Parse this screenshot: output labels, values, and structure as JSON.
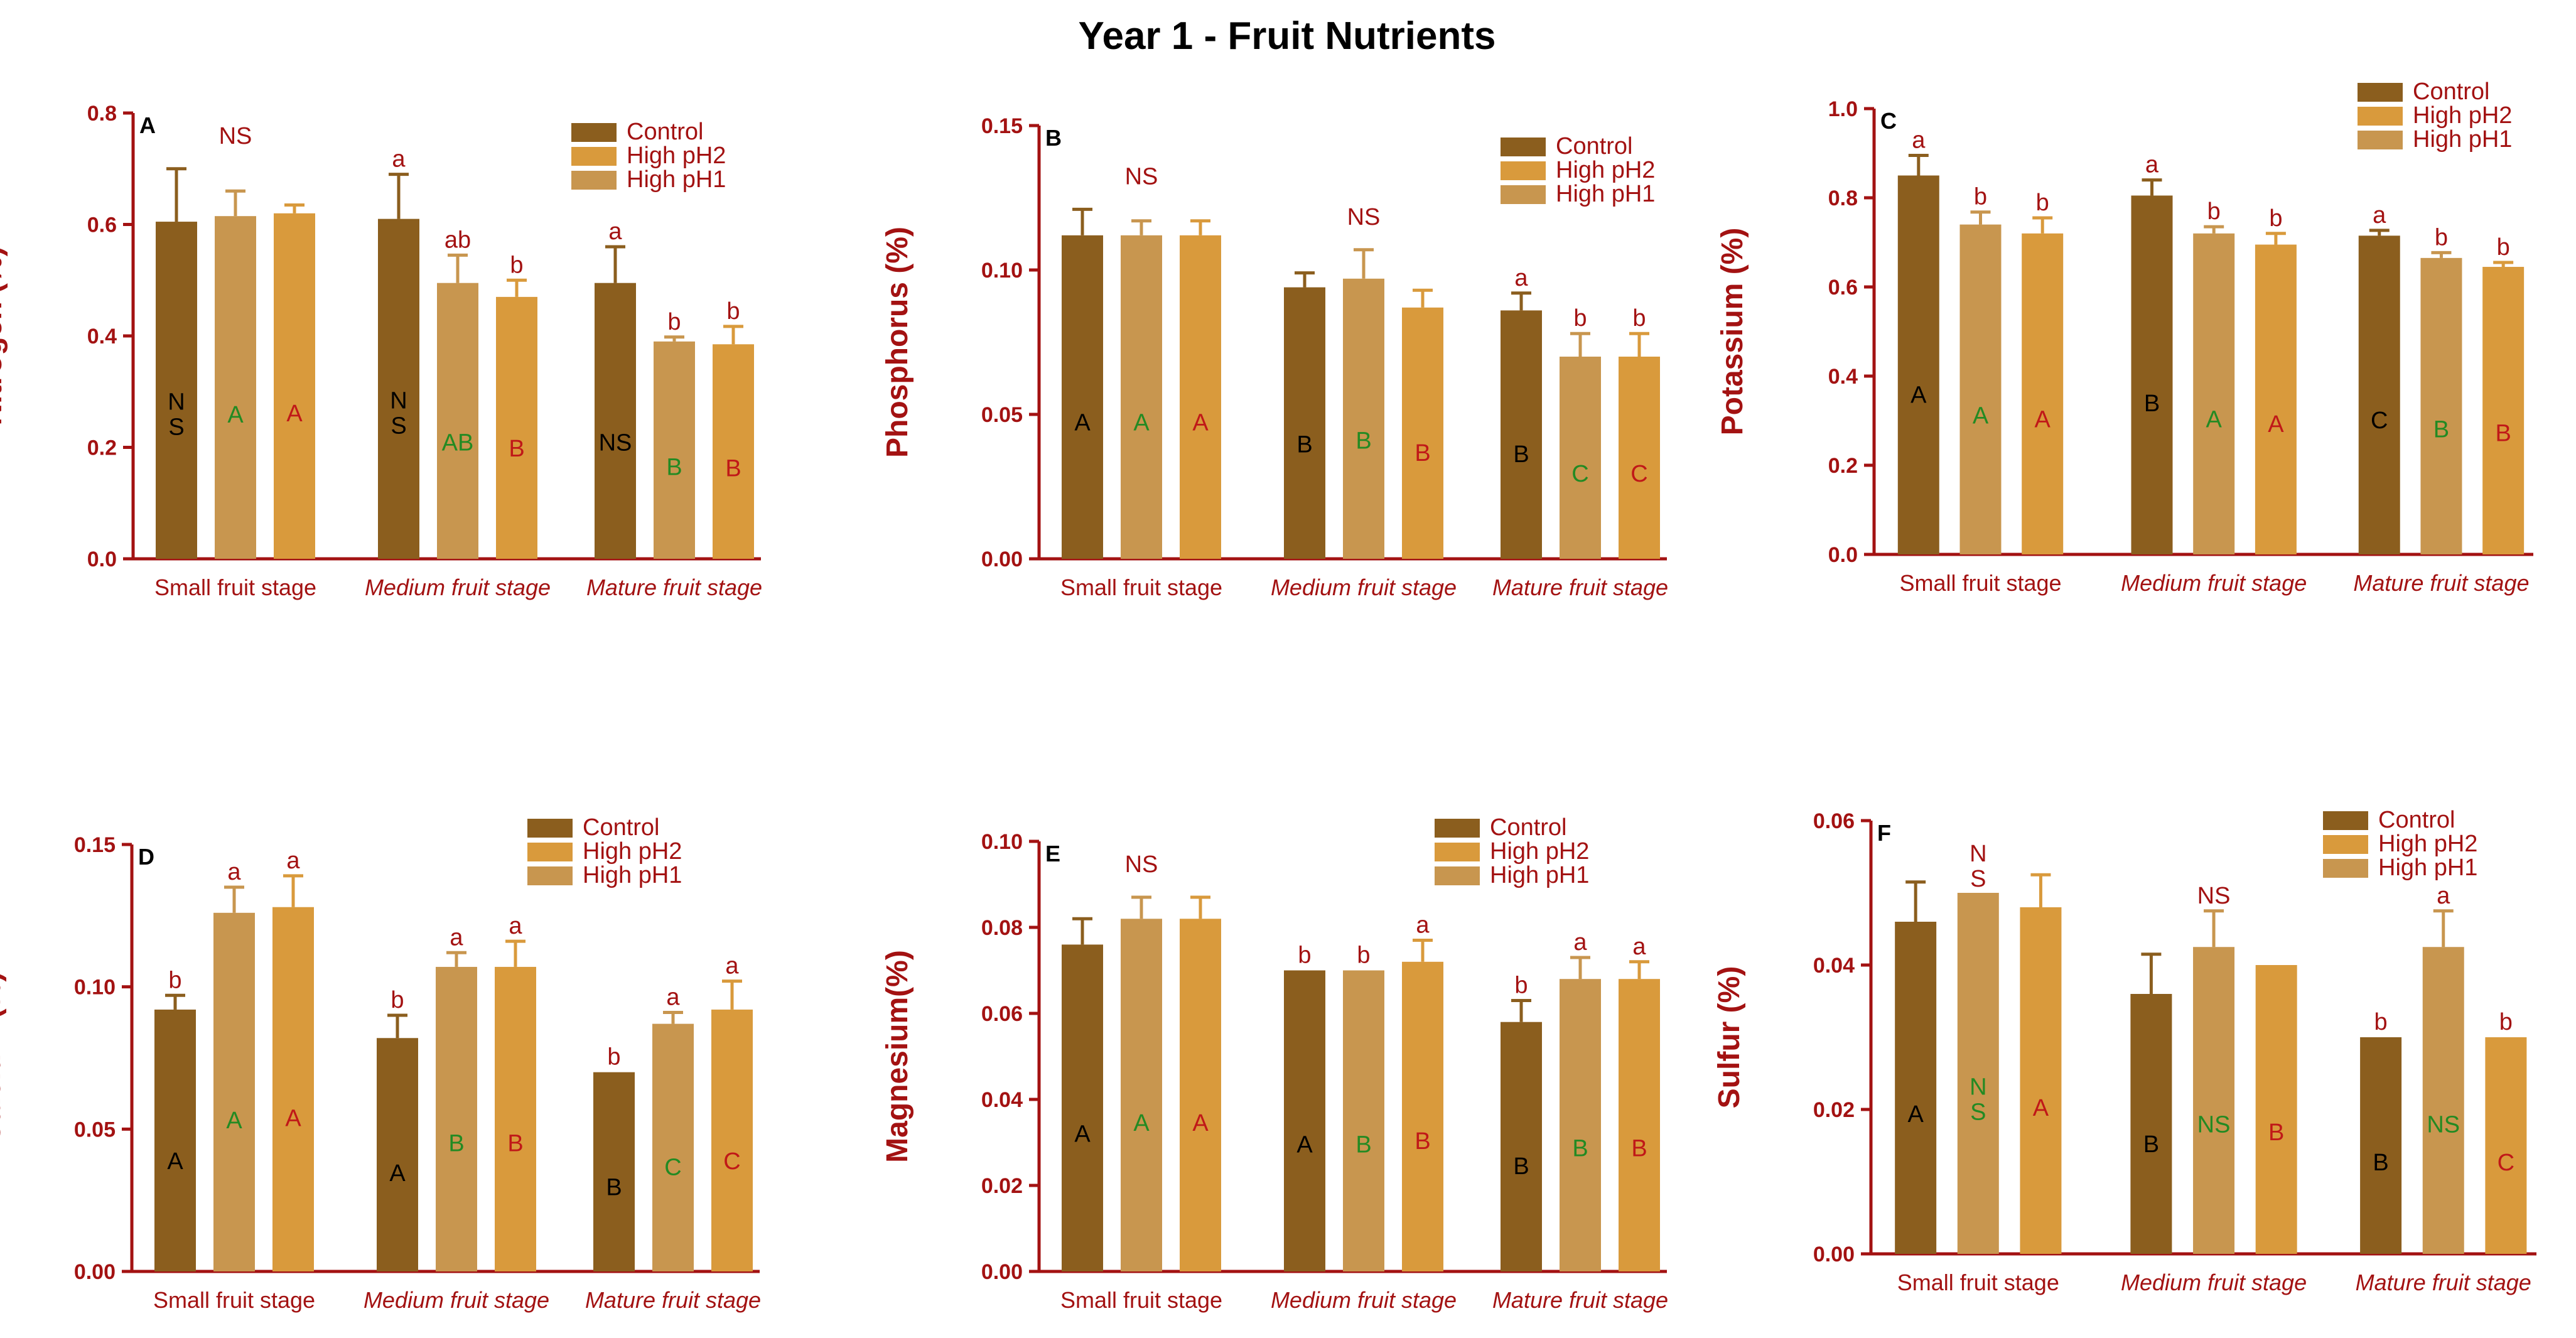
{
  "title": "Year 1 - Fruit Nutrients",
  "colors": {
    "axis": "#a31212",
    "control": "#8b5e1e",
    "high_ph2": "#d99a3c",
    "high_ph1": "#c8964f",
    "letter_control": "#000000",
    "letter_ph1": "#238a23",
    "letter_ph2": "#c01818",
    "sig": "#a31212"
  },
  "legend_labels": [
    "Control",
    "High pH2",
    "High pH1"
  ],
  "chart_data": [
    {
      "type": "bar",
      "panel": "A",
      "ylabel": "Nitrogen (%)",
      "ylim": [
        0,
        0.8
      ],
      "yticks": [
        "0.0",
        "0.2",
        "0.4",
        "0.6",
        "0.8"
      ],
      "categories": [
        "Small fruit stage",
        "Medium fruit stage",
        "Mature fruit stage"
      ],
      "category_italic": [
        false,
        true,
        true
      ],
      "series": [
        {
          "name": "Control",
          "values": [
            0.605,
            0.61,
            0.495
          ],
          "errors": [
            0.095,
            0.08,
            0.065
          ],
          "sig": [
            "",
            "a",
            "a"
          ],
          "inner": [
            "N\nS",
            "N\nS",
            "NS"
          ]
        },
        {
          "name": "High pH1",
          "values": [
            0.615,
            0.495,
            0.39
          ],
          "errors": [
            0.045,
            0.05,
            0.008
          ],
          "sig": [
            "",
            "ab",
            "b"
          ],
          "inner": [
            "A",
            "AB",
            "B"
          ]
        },
        {
          "name": "High pH2",
          "values": [
            0.62,
            0.47,
            0.385
          ],
          "errors": [
            0.015,
            0.03,
            0.032
          ],
          "sig": [
            "",
            "b",
            "b"
          ],
          "inner": [
            "A",
            "B",
            "B"
          ]
        }
      ],
      "annotations": [
        "NS"
      ]
    },
    {
      "type": "bar",
      "panel": "B",
      "ylabel": "Phosphorus (%)",
      "ylim": [
        0,
        0.15
      ],
      "yticks": [
        "0.00",
        "0.05",
        "0.10",
        "0.15"
      ],
      "categories": [
        "Small fruit stage",
        "Medium fruit stage",
        "Mature fruit stage"
      ],
      "category_italic": [
        false,
        true,
        true
      ],
      "series": [
        {
          "name": "Control",
          "values": [
            0.112,
            0.094,
            0.086
          ],
          "errors": [
            0.009,
            0.005,
            0.006
          ],
          "sig": [
            "",
            "",
            "a"
          ],
          "inner": [
            "A",
            "B",
            "B"
          ]
        },
        {
          "name": "High pH1",
          "values": [
            0.112,
            0.097,
            0.07
          ],
          "errors": [
            0.005,
            0.01,
            0.008
          ],
          "sig": [
            "",
            "",
            "b"
          ],
          "inner": [
            "A",
            "B",
            "C"
          ]
        },
        {
          "name": "High pH2",
          "values": [
            0.112,
            0.087,
            0.07
          ],
          "errors": [
            0.005,
            0.006,
            0.008
          ],
          "sig": [
            "",
            "",
            "b"
          ],
          "inner": [
            "A",
            "B",
            "C"
          ]
        }
      ],
      "annotations": [
        "NS",
        "NS"
      ]
    },
    {
      "type": "bar",
      "panel": "C",
      "ylabel": "Potassium (%)",
      "ylim": [
        0,
        1.0
      ],
      "yticks": [
        "0.0",
        "0.2",
        "0.4",
        "0.6",
        "0.8",
        "1.0"
      ],
      "categories": [
        "Small fruit stage",
        "Medium fruit stage",
        "Mature fruit stage"
      ],
      "category_italic": [
        false,
        true,
        true
      ],
      "series": [
        {
          "name": "Control",
          "values": [
            0.85,
            0.805,
            0.715
          ],
          "errors": [
            0.045,
            0.035,
            0.012
          ],
          "sig": [
            "a",
            "a",
            "a"
          ],
          "inner": [
            "A",
            "B",
            "C"
          ]
        },
        {
          "name": "High pH1",
          "values": [
            0.74,
            0.72,
            0.665
          ],
          "errors": [
            0.028,
            0.015,
            0.012
          ],
          "sig": [
            "b",
            "b",
            "b"
          ],
          "inner": [
            "A",
            "A",
            "B"
          ]
        },
        {
          "name": "High pH2",
          "values": [
            0.72,
            0.695,
            0.645
          ],
          "errors": [
            0.035,
            0.025,
            0.01
          ],
          "sig": [
            "b",
            "b",
            "b"
          ],
          "inner": [
            "A",
            "A",
            "B"
          ]
        }
      ],
      "annotations": []
    },
    {
      "type": "bar",
      "panel": "D",
      "ylabel": "Calcium (%)",
      "ylim": [
        0,
        0.15
      ],
      "yticks": [
        "0.00",
        "0.05",
        "0.10",
        "0.15"
      ],
      "categories": [
        "Small fruit stage",
        "Medium fruit stage",
        "Mature fruit stage"
      ],
      "category_italic": [
        false,
        true,
        true
      ],
      "series": [
        {
          "name": "Control",
          "values": [
            0.092,
            0.082,
            0.07
          ],
          "errors": [
            0.005,
            0.008,
            0.0
          ],
          "sig": [
            "b",
            "b",
            "b"
          ],
          "inner": [
            "A",
            "A",
            "B"
          ]
        },
        {
          "name": "High pH1",
          "values": [
            0.126,
            0.107,
            0.087
          ],
          "errors": [
            0.009,
            0.005,
            0.004
          ],
          "sig": [
            "a",
            "a",
            "a"
          ],
          "inner": [
            "A",
            "B",
            "C"
          ]
        },
        {
          "name": "High pH2",
          "values": [
            0.128,
            0.107,
            0.092
          ],
          "errors": [
            0.011,
            0.009,
            0.01
          ],
          "sig": [
            "a",
            "a",
            "a"
          ],
          "inner": [
            "A",
            "B",
            "C"
          ]
        }
      ],
      "annotations": []
    },
    {
      "type": "bar",
      "panel": "E",
      "ylabel": "Magnesium(%)",
      "ylim": [
        0,
        0.1
      ],
      "yticks": [
        "0.00",
        "0.02",
        "0.04",
        "0.06",
        "0.08",
        "0.10"
      ],
      "categories": [
        "Small fruit stage",
        "Medium fruit stage",
        "Mature fruit stage"
      ],
      "category_italic": [
        false,
        true,
        true
      ],
      "series": [
        {
          "name": "Control",
          "values": [
            0.076,
            0.07,
            0.058
          ],
          "errors": [
            0.006,
            0.0,
            0.005
          ],
          "sig": [
            "",
            "b",
            "b"
          ],
          "inner": [
            "A",
            "A",
            "B"
          ]
        },
        {
          "name": "High pH1",
          "values": [
            0.082,
            0.07,
            0.068
          ],
          "errors": [
            0.005,
            0.0,
            0.005
          ],
          "sig": [
            "",
            "b",
            "a"
          ],
          "inner": [
            "A",
            "B",
            "B"
          ]
        },
        {
          "name": "High pH2",
          "values": [
            0.082,
            0.072,
            0.068
          ],
          "errors": [
            0.005,
            0.005,
            0.004
          ],
          "sig": [
            "",
            "a",
            "a"
          ],
          "inner": [
            "A",
            "B",
            "B"
          ]
        }
      ],
      "annotations": [
        "NS"
      ]
    },
    {
      "type": "bar",
      "panel": "F",
      "ylabel": "Sulfur (%)",
      "ylim": [
        0,
        0.06
      ],
      "yticks": [
        "0.00",
        "0.02",
        "0.04",
        "0.06"
      ],
      "categories": [
        "Small fruit stage",
        "Medium fruit stage",
        "Mature fruit stage"
      ],
      "category_italic": [
        false,
        true,
        true
      ],
      "series": [
        {
          "name": "Control",
          "values": [
            0.046,
            0.036,
            0.03
          ],
          "errors": [
            0.0055,
            0.0055,
            0.0
          ],
          "sig": [
            "",
            "",
            "b"
          ],
          "inner": [
            "A",
            "B",
            "B"
          ]
        },
        {
          "name": "High pH1",
          "values": [
            0.05,
            0.0425,
            0.0425
          ],
          "errors": [
            0.0,
            0.005,
            0.005
          ],
          "sig": [
            "N\nS",
            "NS",
            "a"
          ],
          "inner": [
            "N\nS",
            "NS",
            "NS"
          ]
        },
        {
          "name": "High pH2",
          "values": [
            0.048,
            0.04,
            0.03
          ],
          "errors": [
            0.0045,
            0.0,
            0.0
          ],
          "sig": [
            "",
            "",
            "b"
          ],
          "inner": [
            "A",
            "B",
            "C"
          ]
        }
      ],
      "annotations": []
    }
  ]
}
